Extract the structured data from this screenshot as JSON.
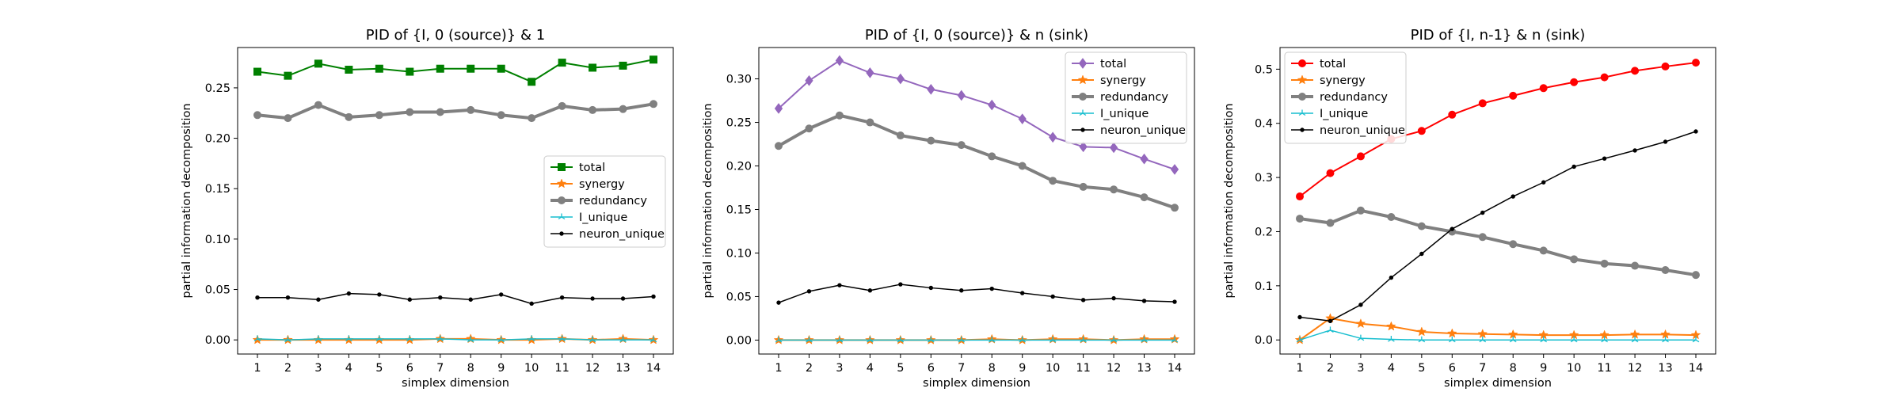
{
  "chart_data": [
    {
      "type": "line",
      "title": "PID of {I, 0 (source)} & 1",
      "xlabel": "simplex dimension",
      "ylabel": "partial information decomposition",
      "x": [
        1,
        2,
        3,
        4,
        5,
        6,
        7,
        8,
        9,
        10,
        11,
        12,
        13,
        14
      ],
      "xlim": [
        0.35,
        14.65
      ],
      "ylim": [
        -0.014,
        0.29
      ],
      "yticks": [
        0.0,
        0.05,
        0.1,
        0.15,
        0.2,
        0.25
      ],
      "ytick_labels": [
        "0.00",
        "0.05",
        "0.10",
        "0.15",
        "0.20",
        "0.25"
      ],
      "grid": false,
      "legend_position": "center-right",
      "series": [
        {
          "name": "total",
          "color": "#008000",
          "marker": "square",
          "width": 2,
          "values": [
            0.266,
            0.262,
            0.274,
            0.268,
            0.269,
            0.266,
            0.269,
            0.269,
            0.269,
            0.256,
            0.275,
            0.27,
            0.272,
            0.278
          ]
        },
        {
          "name": "synergy",
          "color": "#ff7f0e",
          "marker": "star",
          "width": 2,
          "values": [
            0.0,
            0.0,
            0.0,
            0.0,
            0.0,
            0.0,
            0.001,
            0.001,
            0.0,
            0.0,
            0.001,
            0.0,
            0.001,
            0.0
          ]
        },
        {
          "name": "redundancy",
          "color": "#808080",
          "marker": "circle",
          "width": 4,
          "values": [
            0.223,
            0.22,
            0.233,
            0.221,
            0.223,
            0.226,
            0.226,
            0.228,
            0.223,
            0.22,
            0.232,
            0.228,
            0.229,
            0.234
          ]
        },
        {
          "name": "I_unique",
          "color": "#17becf",
          "marker": "tri",
          "width": 1.5,
          "values": [
            0.001,
            0.0,
            0.001,
            0.001,
            0.001,
            0.001,
            0.001,
            0.0,
            0.0,
            0.001,
            0.001,
            0.0,
            0.0,
            0.0
          ]
        },
        {
          "name": "neuron_unique",
          "color": "#000000",
          "marker": "dot",
          "width": 1.5,
          "values": [
            0.042,
            0.042,
            0.04,
            0.046,
            0.045,
            0.04,
            0.042,
            0.04,
            0.045,
            0.036,
            0.042,
            0.041,
            0.041,
            0.043
          ]
        }
      ]
    },
    {
      "type": "line",
      "title": "PID of {I, 0 (source)} & n (sink)",
      "xlabel": "simplex dimension",
      "ylabel": "partial information decomposition",
      "x": [
        1,
        2,
        3,
        4,
        5,
        6,
        7,
        8,
        9,
        10,
        11,
        12,
        13,
        14
      ],
      "xlim": [
        0.35,
        14.65
      ],
      "ylim": [
        -0.016,
        0.336
      ],
      "yticks": [
        0.0,
        0.05,
        0.1,
        0.15,
        0.2,
        0.25,
        0.3
      ],
      "ytick_labels": [
        "0.00",
        "0.05",
        "0.10",
        "0.15",
        "0.20",
        "0.25",
        "0.30"
      ],
      "grid": false,
      "legend_position": "top-right",
      "series": [
        {
          "name": "total",
          "color": "#9467bd",
          "marker": "diamond",
          "width": 2,
          "values": [
            0.266,
            0.298,
            0.321,
            0.307,
            0.3,
            0.288,
            0.281,
            0.27,
            0.254,
            0.233,
            0.222,
            0.221,
            0.208,
            0.196
          ]
        },
        {
          "name": "synergy",
          "color": "#ff7f0e",
          "marker": "star",
          "width": 2,
          "values": [
            0.0,
            0.0,
            0.0,
            0.0,
            0.0,
            0.0,
            0.0,
            0.001,
            0.0,
            0.001,
            0.001,
            0.0,
            0.001,
            0.001
          ]
        },
        {
          "name": "redundancy",
          "color": "#808080",
          "marker": "circle",
          "width": 4,
          "values": [
            0.223,
            0.243,
            0.258,
            0.25,
            0.235,
            0.229,
            0.224,
            0.211,
            0.2,
            0.183,
            0.176,
            0.173,
            0.164,
            0.152
          ]
        },
        {
          "name": "I_unique",
          "color": "#17becf",
          "marker": "tri",
          "width": 1.5,
          "values": [
            0.0,
            0.0,
            0.0,
            0.0,
            0.0,
            0.0,
            0.0,
            0.0,
            0.0,
            0.0,
            0.0,
            0.0,
            0.0,
            0.0
          ]
        },
        {
          "name": "neuron_unique",
          "color": "#000000",
          "marker": "dot",
          "width": 1.5,
          "values": [
            0.043,
            0.056,
            0.063,
            0.057,
            0.064,
            0.06,
            0.057,
            0.059,
            0.054,
            0.05,
            0.046,
            0.048,
            0.045,
            0.044
          ]
        }
      ]
    },
    {
      "type": "line",
      "title": "PID of {I, n-1} & n (sink)",
      "xlabel": "simplex dimension",
      "ylabel": "partial information decomposition",
      "x": [
        1,
        2,
        3,
        4,
        5,
        6,
        7,
        8,
        9,
        10,
        11,
        12,
        13,
        14
      ],
      "xlim": [
        0.35,
        14.65
      ],
      "ylim": [
        -0.026,
        0.54
      ],
      "yticks": [
        0.0,
        0.1,
        0.2,
        0.3,
        0.4,
        0.5
      ],
      "ytick_labels": [
        "0.0",
        "0.1",
        "0.2",
        "0.3",
        "0.4",
        "0.5"
      ],
      "grid": false,
      "legend_position": "top-left",
      "series": [
        {
          "name": "total",
          "color": "#ff0000",
          "marker": "circle",
          "width": 2,
          "values": [
            0.265,
            0.308,
            0.339,
            0.371,
            0.386,
            0.416,
            0.437,
            0.451,
            0.465,
            0.476,
            0.485,
            0.497,
            0.505,
            0.512
          ]
        },
        {
          "name": "synergy",
          "color": "#ff7f0e",
          "marker": "star",
          "width": 2,
          "values": [
            0.0,
            0.04,
            0.03,
            0.025,
            0.015,
            0.012,
            0.011,
            0.01,
            0.009,
            0.009,
            0.009,
            0.01,
            0.01,
            0.009
          ]
        },
        {
          "name": "redundancy",
          "color": "#808080",
          "marker": "circle",
          "width": 4,
          "values": [
            0.224,
            0.216,
            0.239,
            0.227,
            0.21,
            0.2,
            0.19,
            0.177,
            0.165,
            0.149,
            0.141,
            0.137,
            0.129,
            0.12
          ]
        },
        {
          "name": "I_unique",
          "color": "#17becf",
          "marker": "tri",
          "width": 1.5,
          "values": [
            0.0,
            0.018,
            0.003,
            0.001,
            0.0,
            0.0,
            0.0,
            0.0,
            0.0,
            0.0,
            0.0,
            0.0,
            0.0,
            0.0
          ]
        },
        {
          "name": "neuron_unique",
          "color": "#000000",
          "marker": "dot",
          "width": 1.5,
          "values": [
            0.042,
            0.035,
            0.065,
            0.115,
            0.159,
            0.205,
            0.235,
            0.265,
            0.291,
            0.32,
            0.335,
            0.35,
            0.366,
            0.385
          ]
        }
      ]
    }
  ]
}
